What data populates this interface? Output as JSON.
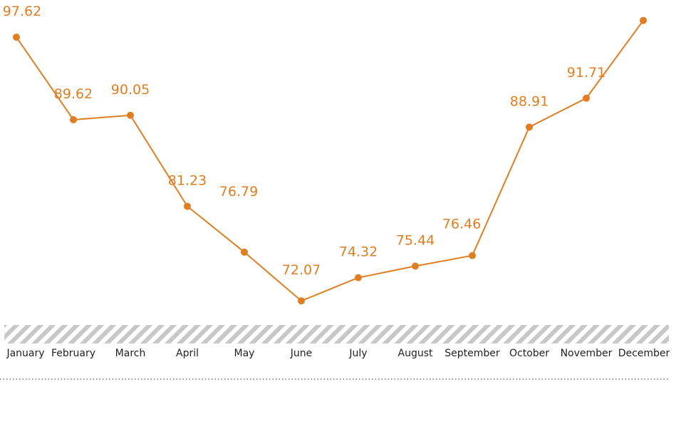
{
  "chart_data": {
    "type": "line",
    "title": "",
    "xlabel": "",
    "ylabel": "",
    "categories": [
      "January",
      "February",
      "March",
      "April",
      "May",
      "June",
      "July",
      "August",
      "September",
      "October",
      "November",
      "December"
    ],
    "series": [
      {
        "values": [
          97.62,
          89.62,
          90.05,
          81.23,
          76.79,
          72.07,
          74.32,
          75.44,
          76.46,
          88.91,
          91.71,
          99.24
        ]
      }
    ],
    "ylim": [
      60,
      101
    ],
    "grid": false,
    "legend": "none",
    "colors": {
      "line": "#e07e22",
      "label": "#e07e22",
      "tick_text": "#222222",
      "band": "#c8c8c8"
    }
  }
}
